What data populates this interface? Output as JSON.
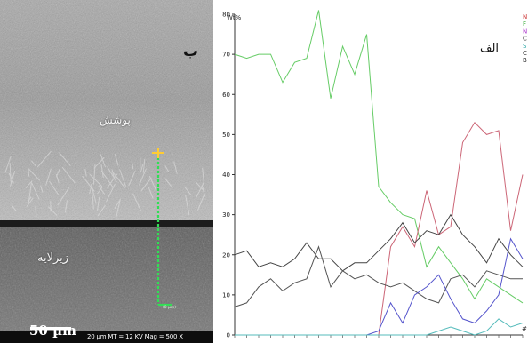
{
  "sem_panel": {
    "panel_letter": "ب",
    "coating_label": "پوشش",
    "substrate_label": "زیرلایه",
    "scale_bar_text": "50 µm",
    "info_bar_text": "20 µm   MT = 12 KV   Mag = 500 X",
    "scan_line_tag": "(0 µm)",
    "colors": {
      "scan_line": "#33dd55",
      "marker": "#ffcc33"
    }
  },
  "chart_data": {
    "type": "line",
    "ylabel": "Wt%",
    "annotation": "الف",
    "ylim": [
      0,
      80
    ],
    "yticks": [
      0,
      10,
      20,
      30,
      40,
      50,
      60,
      70,
      80
    ],
    "x": [
      0,
      1,
      2,
      3,
      4,
      5,
      6,
      7,
      8,
      9,
      10,
      11,
      12,
      13,
      14,
      15,
      16,
      17,
      18,
      19,
      20,
      21,
      22,
      23,
      24
    ],
    "legend_marks": [
      "N",
      "F",
      "N",
      "C",
      "S",
      "C",
      "B"
    ],
    "legend_colors": [
      "#cc3333",
      "#33aa33",
      "#aa33cc",
      "#333333",
      "#33aaaa",
      "#333333",
      "#222222"
    ],
    "x_end_mark": "#",
    "series": [
      {
        "color": "#66cc66",
        "values": [
          70,
          69,
          70,
          70,
          63,
          68,
          69,
          81,
          59,
          72,
          65,
          75,
          37,
          33,
          30,
          29,
          17,
          22,
          18,
          14,
          9,
          14,
          12,
          10,
          8
        ]
      },
      {
        "color": "#cc6677",
        "values": [
          0,
          0,
          0,
          0,
          0,
          0,
          0,
          0,
          0,
          0,
          0,
          0,
          0,
          22,
          27,
          22,
          36,
          25,
          27,
          48,
          53,
          50,
          51,
          26,
          40
        ]
      },
      {
        "color": "#444444",
        "values": [
          20,
          21,
          17,
          18,
          17,
          19,
          23,
          19,
          19,
          16,
          18,
          18,
          21,
          24,
          28,
          23,
          26,
          25,
          30,
          25,
          22,
          18,
          24,
          20,
          17
        ]
      },
      {
        "color": "#555555",
        "values": [
          7,
          8,
          12,
          14,
          11,
          13,
          14,
          22,
          12,
          16,
          14,
          15,
          13,
          12,
          13,
          11,
          9,
          8,
          14,
          15,
          12,
          16,
          15,
          14,
          14
        ]
      },
      {
        "color": "#5555cc",
        "values": [
          0,
          0,
          0,
          0,
          0,
          0,
          0,
          0,
          0,
          0,
          0,
          0,
          1,
          8,
          3,
          10,
          12,
          15,
          9,
          4,
          3,
          6,
          10,
          24,
          19
        ]
      },
      {
        "color": "#55bbbb",
        "values": [
          0,
          0,
          0,
          0,
          0,
          0,
          0,
          0,
          0,
          0,
          0,
          0,
          0,
          0,
          0,
          0,
          0,
          1,
          2,
          1,
          0,
          1,
          4,
          2,
          3
        ]
      }
    ]
  }
}
